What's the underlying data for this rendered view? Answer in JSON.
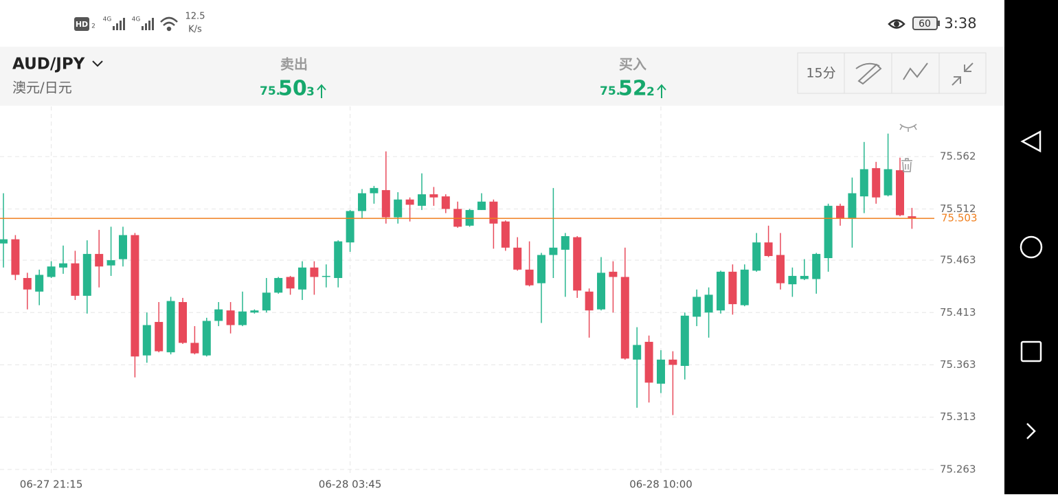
{
  "status_bar": {
    "hd": "HD",
    "hd_sub": "2",
    "net1": "4G",
    "net2": "4G",
    "speed": "12.5",
    "speed_unit": "K/s",
    "battery": "60",
    "time": "3:38"
  },
  "header": {
    "pair": "AUD/JPY",
    "pair_name": "澳元/日元",
    "sell": {
      "label": "卖出",
      "prefix": "75.",
      "big": "50",
      "small": "3"
    },
    "buy": {
      "label": "买入",
      "prefix": "75.",
      "big": "52",
      "small": "2"
    },
    "interval": "15分"
  },
  "chart_data": {
    "type": "candlestick",
    "categories": [
      null,
      null,
      null,
      null,
      "06-27 21:15",
      null,
      null,
      null,
      null,
      null,
      null,
      null,
      null,
      null,
      null,
      null,
      null,
      null,
      null,
      null,
      null,
      null,
      null,
      null,
      null,
      null,
      null,
      null,
      null,
      "06-28 03:45",
      null,
      null,
      null,
      null,
      null,
      null,
      null,
      null,
      null,
      null,
      null,
      null,
      null,
      null,
      null,
      null,
      null,
      null,
      null,
      null,
      null,
      null,
      null,
      null,
      null,
      "06-28 10:00",
      null,
      null,
      null,
      null,
      null,
      null,
      null,
      null,
      null,
      null,
      null,
      null,
      null,
      null,
      null,
      null,
      null,
      null,
      null,
      null,
      null
    ],
    "open": [
      75.479,
      75.483,
      75.446,
      75.433,
      75.447,
      75.456,
      75.46,
      75.429,
      75.469,
      75.458,
      75.464,
      75.487,
      75.372,
      75.404,
      75.375,
      75.423,
      75.384,
      75.372,
      75.405,
      75.415,
      75.401,
      75.413,
      75.415,
      75.432,
      75.447,
      75.435,
      75.456,
      75.447,
      75.446,
      75.48,
      75.51,
      75.527,
      75.53,
      75.504,
      75.521,
      75.515,
      75.526,
      75.524,
      75.512,
      75.496,
      75.511,
      75.519,
      75.5,
      75.475,
      75.454,
      75.441,
      75.468,
      75.473,
      75.485,
      75.433,
      75.416,
      75.452,
      75.447,
      75.368,
      75.385,
      75.345,
      75.368,
      75.362,
      75.409,
      75.413,
      75.415,
      75.452,
      75.42,
      75.453,
      75.48,
      75.468,
      75.44,
      75.445,
      75.445,
      75.465,
      75.515,
      75.503,
      75.524,
      75.551,
      75.525,
      75.549,
      75.505
    ],
    "high": [
      75.527,
      75.487,
      75.451,
      75.454,
      75.462,
      75.477,
      75.472,
      75.482,
      75.492,
      75.495,
      75.495,
      75.489,
      75.413,
      75.423,
      75.428,
      75.427,
      75.4,
      75.408,
      75.423,
      75.423,
      75.433,
      75.416,
      75.446,
      75.447,
      75.448,
      75.462,
      75.462,
      75.459,
      75.482,
      75.511,
      75.531,
      75.534,
      75.567,
      75.528,
      75.523,
      75.546,
      75.533,
      75.526,
      75.519,
      75.512,
      75.527,
      75.521,
      75.501,
      75.485,
      75.481,
      75.47,
      75.532,
      75.489,
      75.486,
      75.436,
      75.466,
      75.462,
      75.475,
      75.399,
      75.391,
      75.377,
      75.376,
      75.413,
      75.435,
      75.437,
      75.453,
      75.459,
      75.459,
      75.489,
      75.496,
      75.489,
      75.456,
      75.464,
      75.47,
      75.517,
      75.517,
      75.542,
      75.576,
      75.557,
      75.584,
      75.561,
      75.513
    ],
    "low": [
      75.456,
      75.444,
      75.416,
      75.42,
      75.446,
      75.45,
      75.425,
      75.412,
      75.437,
      75.448,
      75.457,
      75.351,
      75.365,
      75.375,
      75.373,
      75.383,
      75.373,
      75.371,
      75.4,
      75.393,
      75.4,
      75.412,
      75.413,
      75.431,
      75.43,
      75.425,
      75.43,
      75.437,
      75.437,
      75.471,
      75.503,
      75.517,
      75.498,
      75.498,
      75.5,
      75.511,
      75.515,
      75.508,
      75.494,
      75.495,
      75.511,
      75.474,
      75.472,
      75.453,
      75.438,
      75.403,
      75.446,
      75.428,
      75.427,
      75.389,
      75.415,
      75.413,
      75.368,
      75.322,
      75.327,
      75.336,
      75.315,
      75.349,
      75.4,
      75.389,
      75.412,
      75.411,
      75.419,
      75.452,
      75.466,
      75.435,
      75.428,
      75.444,
      75.431,
      75.452,
      75.496,
      75.475,
      75.508,
      75.517,
      75.524,
      75.505,
      75.493
    ],
    "close": [
      75.483,
      75.449,
      75.435,
      75.449,
      75.457,
      75.46,
      75.429,
      75.469,
      75.457,
      75.463,
      75.487,
      75.371,
      75.401,
      75.376,
      75.424,
      75.384,
      75.374,
      75.405,
      75.416,
      75.401,
      75.414,
      75.415,
      75.432,
      75.446,
      75.436,
      75.456,
      75.447,
      75.448,
      75.481,
      75.51,
      75.527,
      75.532,
      75.504,
      75.521,
      75.516,
      75.526,
      75.523,
      75.512,
      75.495,
      75.511,
      75.519,
      75.498,
      75.475,
      75.454,
      75.439,
      75.468,
      75.475,
      75.486,
      75.434,
      75.415,
      75.451,
      75.447,
      75.369,
      75.382,
      75.346,
      75.368,
      75.363,
      75.41,
      75.428,
      75.43,
      75.452,
      75.421,
      75.454,
      75.48,
      75.467,
      75.441,
      75.448,
      75.448,
      75.469,
      75.515,
      75.503,
      75.527,
      75.55,
      75.523,
      75.55,
      75.506,
      75.503
    ],
    "up_color": "#26b68e",
    "down_color": "#e8495a",
    "ylim": [
      75.259,
      75.61
    ],
    "yticks": [
      75.263,
      75.313,
      75.363,
      75.413,
      75.463,
      75.512,
      75.562
    ],
    "grid": true,
    "price_line": {
      "value": 75.503,
      "color": "#f07f1e"
    }
  }
}
